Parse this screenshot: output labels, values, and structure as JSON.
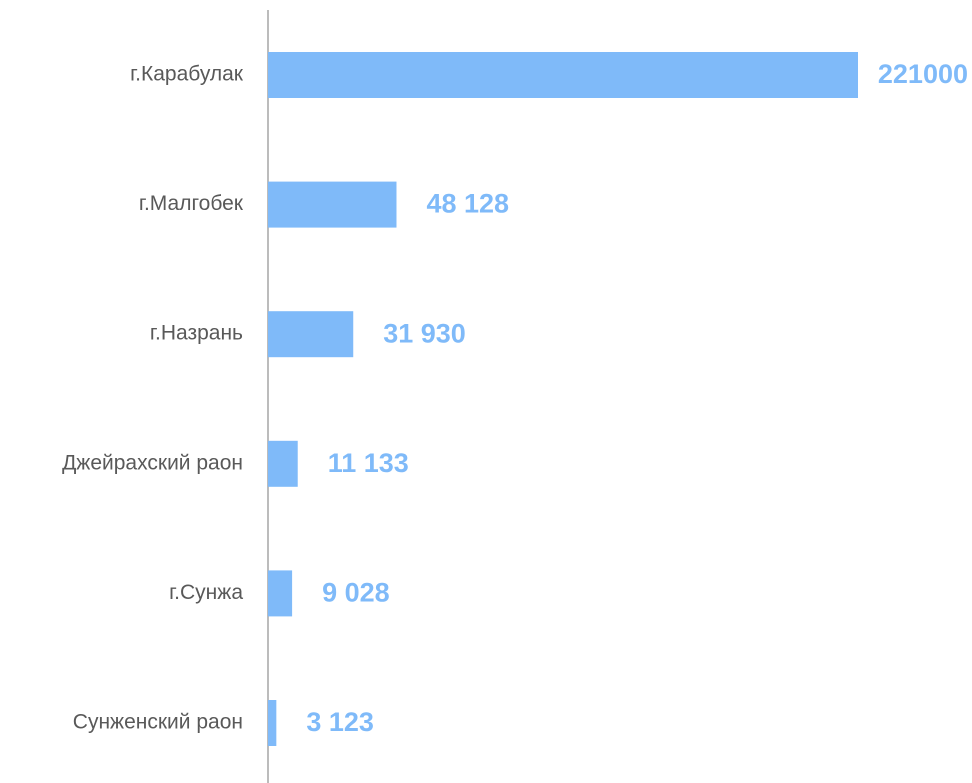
{
  "chart_data": {
    "type": "barh",
    "categories": [
      "г.Карабулак",
      "г.Малгобек",
      "г.Назрань",
      "Джейрахский раон",
      "г.Сунжа",
      "Сунженский раон"
    ],
    "values": [
      221000,
      48128,
      31930,
      11133,
      9028,
      3123
    ],
    "value_labels": [
      "221000",
      "48 128",
      "31 930",
      "11 133",
      "9 028",
      "3 123"
    ],
    "color": "#7fbaf9"
  }
}
